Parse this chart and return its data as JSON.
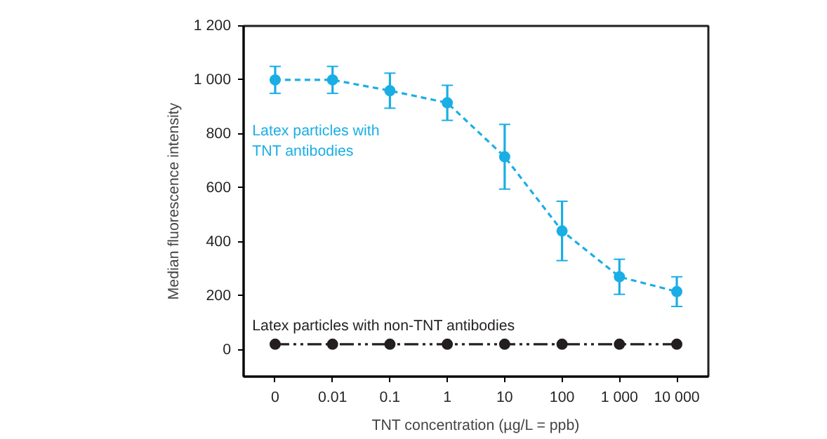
{
  "chart_data": {
    "type": "line",
    "xlabel": "TNT concentration (µg/L = ppb)",
    "ylabel": "Median fluorescence intensity",
    "categories": [
      "0",
      "0.01",
      "0.1",
      "1",
      "10",
      "100",
      "1 000",
      "10 000"
    ],
    "series": [
      {
        "name": "Latex particles with TNT antibodies",
        "color": "#1aaee5",
        "line_style": "dashed",
        "values": [
          1000,
          1000,
          960,
          915,
          715,
          440,
          270,
          215
        ],
        "errors": [
          50,
          50,
          65,
          65,
          120,
          110,
          65,
          55
        ]
      },
      {
        "name": "Latex particles with non-TNT antibodies",
        "color": "#231f20",
        "line_style": "dashdot",
        "values": [
          20,
          20,
          20,
          20,
          20,
          20,
          20,
          20
        ]
      }
    ],
    "ylim": [
      -100,
      1200
    ],
    "yticks": [
      0,
      200,
      400,
      600,
      800,
      {
        "value": 1000,
        "label": "1 000"
      },
      {
        "value": 1200,
        "label": "1 200"
      }
    ],
    "marker": "circle",
    "grid": false
  }
}
